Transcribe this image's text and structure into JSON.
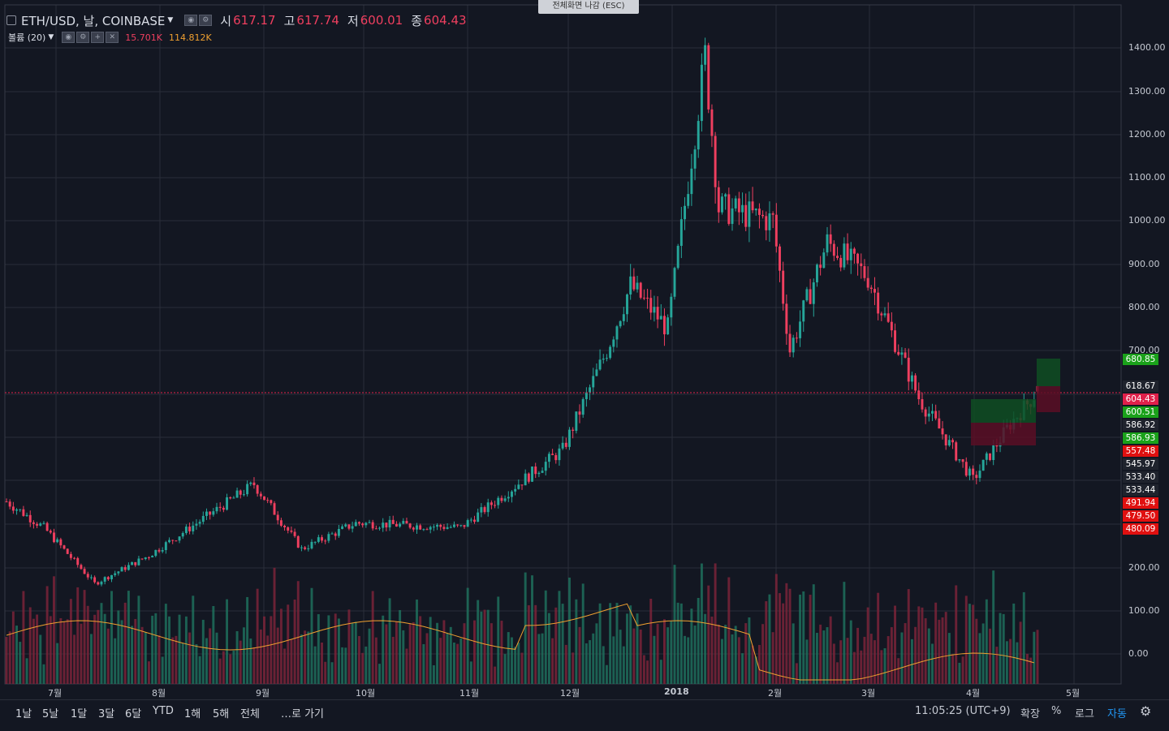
{
  "header": {
    "symbol": "ETH/USD, 날, COINBASE",
    "open_label": "시",
    "open_value": "617.17",
    "high_label": "고",
    "high_value": "617.74",
    "low_label": "저",
    "low_value": "600.01",
    "close_label": "종",
    "close_value": "604.43"
  },
  "volume_indicator": {
    "label": "볼륨 (20)",
    "value1": "15.701K",
    "value2": "114.812K"
  },
  "fullscreen_tip": "전체화면 나감 (ESC)",
  "y_axis_labels": [
    "1400.00",
    "1300.00",
    "1200.00",
    "1100.00",
    "1000.00",
    "900.00",
    "800.00",
    "700.00",
    "200.00",
    "100.00",
    "0.00"
  ],
  "price_tags": [
    {
      "text": "680.85",
      "color": "#1aa11a"
    },
    {
      "text": "618.67",
      "color": "#1f232d"
    },
    {
      "text": "604.43",
      "color": "#e0204a"
    },
    {
      "text": "600.51",
      "color": "#1aa11a"
    },
    {
      "text": "586.92",
      "color": "#1f232d"
    },
    {
      "text": "586.93",
      "color": "#1aa11a"
    },
    {
      "text": "557.48",
      "color": "#e01010"
    },
    {
      "text": "545.97",
      "color": "#1f232d"
    },
    {
      "text": "533.40",
      "color": "#1f232d"
    },
    {
      "text": "533.44",
      "color": "#1f232d"
    },
    {
      "text": "491.94",
      "color": "#e01010"
    },
    {
      "text": "479.50",
      "color": "#e01010"
    },
    {
      "text": "480.09",
      "color": "#e01010"
    }
  ],
  "x_axis_labels": [
    "7월",
    "8월",
    "9월",
    "10월",
    "11월",
    "12월",
    "2018",
    "2월",
    "3월",
    "4월",
    "5월"
  ],
  "range_buttons": [
    "1날",
    "5날",
    "1달",
    "3달",
    "6달",
    "YTD",
    "1해",
    "5해",
    "전체"
  ],
  "goto_label": "…로 가기",
  "clock": "11:05:25 (UTC+9)",
  "bottom_right": {
    "expand": "확장",
    "percent": "%",
    "log": "로그",
    "auto": "자동"
  },
  "icons": {
    "settings": "gear-icon",
    "collapse": "square-icon"
  },
  "colors": {
    "up": "#26a69a",
    "down": "#ef3f5f",
    "background": "#131722",
    "grid": "#2a2e39",
    "ma_line": "#f0a030"
  },
  "chart_data": {
    "type": "candlestick",
    "symbol": "ETH/USD",
    "exchange": "COINBASE",
    "interval": "1 day",
    "last": {
      "open": 617.17,
      "high": 617.74,
      "low": 600.01,
      "close": 604.43
    },
    "ylim": [
      460,
      1420
    ],
    "monthly_points": [
      {
        "date": "2017-06-20",
        "close": 350
      },
      {
        "date": "2017-07-01",
        "close": 290
      },
      {
        "date": "2017-07-16",
        "close": 160
      },
      {
        "date": "2017-08-01",
        "close": 225
      },
      {
        "date": "2017-09-01",
        "close": 390
      },
      {
        "date": "2017-09-15",
        "close": 240
      },
      {
        "date": "2017-10-01",
        "close": 300
      },
      {
        "date": "2017-11-01",
        "close": 290
      },
      {
        "date": "2017-12-01",
        "close": 470
      },
      {
        "date": "2017-12-14",
        "close": 700
      },
      {
        "date": "2017-12-21",
        "close": 850
      },
      {
        "date": "2018-01-01",
        "close": 750
      },
      {
        "date": "2018-01-12",
        "close": 1380
      },
      {
        "date": "2018-01-16",
        "close": 1030
      },
      {
        "date": "2018-02-01",
        "close": 1000
      },
      {
        "date": "2018-02-06",
        "close": 700
      },
      {
        "date": "2018-02-17",
        "close": 950
      },
      {
        "date": "2018-03-01",
        "close": 870
      },
      {
        "date": "2018-03-16",
        "close": 590
      },
      {
        "date": "2018-04-01",
        "close": 400
      },
      {
        "date": "2018-04-12",
        "close": 530
      },
      {
        "date": "2018-04-20",
        "close": 604.43
      }
    ]
  }
}
